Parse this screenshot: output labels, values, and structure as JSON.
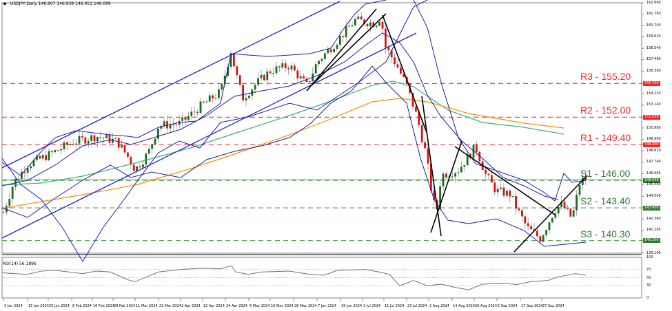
{
  "header": {
    "symbol": "USDJPY,Daily",
    "ohlc": "146.907 146.939 146.051 146.099"
  },
  "rsi": {
    "label": "RSI(14) 56.1896"
  },
  "colors": {
    "bull": "#1b6b1b",
    "bear": "#e01010",
    "bollinger": "#1c1ca8",
    "channel": "#1c1ce0",
    "ma100": "#3cb371",
    "ma200": "#ff8c00",
    "resistance": "#ff4040",
    "support": "#5aa85a",
    "trendline": "#000000",
    "rsi": "#707070"
  },
  "chart_data": {
    "type": "line",
    "title": "USDJPY,Daily",
    "subtitle": "146.907 146.939 146.051 146.099",
    "xlabel": "",
    "ylabel": "",
    "ylim": [
      139.1,
      162.86
    ],
    "grid": false,
    "price_axis_ticks": [
      "162.860",
      "161.780",
      "160.700",
      "159.620",
      "158.540",
      "157.460",
      "156.380",
      "155.200",
      "154.220",
      "153.140",
      "152.000",
      "150.980",
      "149.900",
      "149.400",
      "148.820",
      "147.740",
      "146.665",
      "146.000",
      "145.580",
      "144.500",
      "143.400",
      "142.340",
      "141.265",
      "140.300",
      "139.100"
    ],
    "x_tick_labels": [
      "3 Jan 2024",
      "15 Jan 2024",
      "25 Jan 2024",
      "6 Feb 2024",
      "16 Feb 2024",
      "28 Feb 2024",
      "11 Mar 2024",
      "21 Mar 2024",
      "2 Apr 2024",
      "12 Apr 2024",
      "24 Apr 2024",
      "6 May 2024",
      "16 May 2024",
      "28 May 2024",
      "7 Jun 2024",
      "19 Jun 2024",
      "1 Jul 2024",
      "11 Jul 2024",
      "23 Jul 2024",
      "2 Aug 2024",
      "14 Aug 2024",
      "26 Aug 2024",
      "5 Sep 2024",
      "17 Sep 2024",
      "27 Sep 2024"
    ],
    "levels": [
      {
        "name": "R3",
        "label": "R3 - 155.20",
        "value": 155.2,
        "type": "resistance"
      },
      {
        "name": "R2",
        "label": "R2 - 152.00",
        "value": 152.0,
        "type": "resistance"
      },
      {
        "name": "R1",
        "label": "R1 - 149.40",
        "value": 149.4,
        "type": "resistance"
      },
      {
        "name": "S1",
        "label": "S1 - 146.00",
        "value": 146.0,
        "type": "support"
      },
      {
        "name": "S2",
        "label": "S2 - 143.40",
        "value": 143.4,
        "type": "support"
      },
      {
        "name": "S3",
        "label": "S3 - 140.30",
        "value": 140.3,
        "type": "support"
      }
    ],
    "series": [
      {
        "name": "USDJPY close (approx.)",
        "x": [
          "3 Jan 2024",
          "15 Jan 2024",
          "25 Jan 2024",
          "6 Feb 2024",
          "16 Feb 2024",
          "28 Feb 2024",
          "11 Mar 2024",
          "21 Mar 2024",
          "2 Apr 2024",
          "12 Apr 2024",
          "24 Apr 2024",
          "6 May 2024",
          "16 May 2024",
          "28 May 2024",
          "7 Jun 2024",
          "19 Jun 2024",
          "1 Jul 2024",
          "11 Jul 2024",
          "23 Jul 2024",
          "2 Aug 2024",
          "14 Aug 2024",
          "26 Aug 2024",
          "5 Sep 2024",
          "17 Sep 2024",
          "27 Sep 2024"
        ],
        "values": [
          143.2,
          146.2,
          147.8,
          148.6,
          150.2,
          150.0,
          147.0,
          151.4,
          151.6,
          153.2,
          155.6,
          153.8,
          155.6,
          157.2,
          156.8,
          158.4,
          161.3,
          161.5,
          155.8,
          146.7,
          147.3,
          144.5,
          142.5,
          142.0,
          146.1
        ]
      },
      {
        "name": "RSI(14)",
        "values": [
          55,
          60,
          63,
          64,
          65,
          60,
          43,
          62,
          64,
          66,
          72,
          58,
          60,
          62,
          59,
          66,
          72,
          70,
          38,
          22,
          45,
          42,
          38,
          40,
          56.19
        ],
        "ylim": [
          0,
          100
        ],
        "levels": [
          30,
          50,
          70
        ]
      }
    ],
    "indicators": [
      "Bollinger Bands",
      "MA 100 (green)",
      "MA 200 (orange)",
      "Ascending channel",
      "Trendlines"
    ]
  }
}
